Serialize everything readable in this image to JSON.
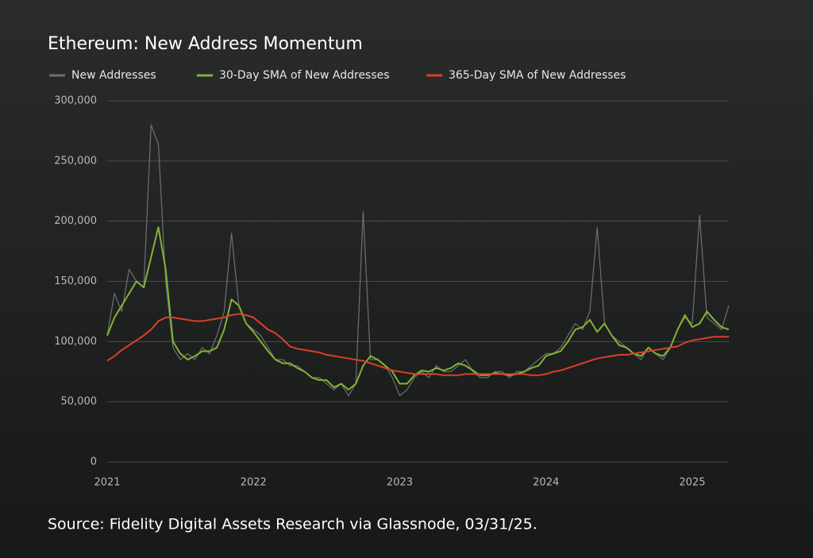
{
  "chart_data": {
    "type": "line",
    "title": "Ethereum: New Address Momentum",
    "source": "Source: Fidelity Digital Assets Research via Glassnode, 03/31/25.",
    "x": [
      2021,
      2021.05,
      2021.1,
      2021.15,
      2021.2,
      2021.25,
      2021.3,
      2021.35,
      2021.4,
      2021.45,
      2021.5,
      2021.55,
      2021.6,
      2021.65,
      2021.7,
      2021.75,
      2021.8,
      2021.85,
      2021.9,
      2021.95,
      2022,
      2022.05,
      2022.1,
      2022.15,
      2022.2,
      2022.25,
      2022.3,
      2022.35,
      2022.4,
      2022.45,
      2022.5,
      2022.55,
      2022.6,
      2022.65,
      2022.7,
      2022.75,
      2022.8,
      2022.85,
      2022.9,
      2022.95,
      2023,
      2023.05,
      2023.1,
      2023.15,
      2023.2,
      2023.25,
      2023.3,
      2023.35,
      2023.4,
      2023.45,
      2023.5,
      2023.55,
      2023.6,
      2023.65,
      2023.7,
      2023.75,
      2023.8,
      2023.85,
      2023.9,
      2023.95,
      2024,
      2024.05,
      2024.1,
      2024.15,
      2024.2,
      2024.25,
      2024.3,
      2024.35,
      2024.4,
      2024.45,
      2024.5,
      2024.55,
      2024.6,
      2024.65,
      2024.7,
      2024.75,
      2024.8,
      2024.85,
      2024.9,
      2024.95,
      2025,
      2025.05,
      2025.1,
      2025.15,
      2025.2,
      2025.25
    ],
    "series": [
      {
        "name": "New Addresses",
        "color": "#6e7073",
        "values": [
          105000,
          140000,
          125000,
          160000,
          150000,
          145000,
          280000,
          264000,
          150000,
          95000,
          85000,
          90000,
          85000,
          95000,
          90000,
          105000,
          125000,
          190000,
          130000,
          115000,
          110000,
          105000,
          95000,
          85000,
          85000,
          80000,
          80000,
          75000,
          70000,
          70000,
          65000,
          60000,
          65000,
          55000,
          65000,
          208000,
          85000,
          85000,
          80000,
          70000,
          55000,
          60000,
          70000,
          75000,
          70000,
          80000,
          75000,
          75000,
          80000,
          85000,
          75000,
          70000,
          70000,
          75000,
          75000,
          70000,
          75000,
          75000,
          80000,
          85000,
          90000,
          90000,
          95000,
          105000,
          115000,
          110000,
          125000,
          195000,
          115000,
          105000,
          100000,
          95000,
          90000,
          85000,
          95000,
          90000,
          85000,
          95000,
          110000,
          120000,
          115000,
          205000,
          120000,
          115000,
          110000,
          130000
        ]
      },
      {
        "name": "30-Day SMA of New Addresses",
        "color": "#7fb432",
        "values": [
          105000,
          120000,
          130000,
          140000,
          150000,
          145000,
          170000,
          195000,
          160000,
          100000,
          90000,
          85000,
          88000,
          92000,
          92000,
          95000,
          110000,
          135000,
          130000,
          115000,
          108000,
          100000,
          92000,
          85000,
          82000,
          82000,
          78000,
          75000,
          70000,
          68000,
          68000,
          62000,
          65000,
          60000,
          65000,
          80000,
          88000,
          85000,
          80000,
          75000,
          65000,
          65000,
          72000,
          76000,
          75000,
          78000,
          76000,
          78000,
          82000,
          80000,
          76000,
          72000,
          72000,
          74000,
          73000,
          72000,
          73000,
          75000,
          78000,
          80000,
          88000,
          90000,
          92000,
          100000,
          110000,
          112000,
          118000,
          108000,
          115000,
          105000,
          97000,
          95000,
          90000,
          88000,
          95000,
          90000,
          88000,
          95000,
          110000,
          122000,
          112000,
          115000,
          125000,
          118000,
          112000,
          110000
        ]
      },
      {
        "name": "365-Day SMA of New Addresses",
        "color": "#d9402a",
        "values": [
          84000,
          88000,
          93000,
          97000,
          101000,
          105000,
          110000,
          117000,
          120000,
          120000,
          119000,
          118000,
          117000,
          117000,
          118000,
          119000,
          120000,
          122000,
          123000,
          122000,
          120000,
          115000,
          110000,
          107000,
          102000,
          96000,
          94000,
          93000,
          92000,
          91000,
          89000,
          88000,
          87000,
          86000,
          85000,
          84000,
          82000,
          80000,
          78000,
          76000,
          75000,
          74000,
          73000,
          73000,
          73000,
          73000,
          72000,
          72000,
          72000,
          73000,
          73000,
          73000,
          73000,
          73000,
          73000,
          73000,
          73000,
          73000,
          72000,
          72000,
          73000,
          75000,
          76000,
          78000,
          80000,
          82000,
          84000,
          86000,
          87000,
          88000,
          89000,
          89000,
          90000,
          91000,
          92000,
          93000,
          94000,
          95000,
          96000,
          99000,
          101000,
          102000,
          103000,
          104000,
          104000,
          104000
        ]
      }
    ],
    "xlim": [
      2021,
      2025.25
    ],
    "xticks": [
      2021,
      2022,
      2023,
      2024,
      2025
    ],
    "ylim": [
      0,
      300000
    ],
    "yticks": [
      0,
      {
        "value": 50000,
        "label": "50,000"
      },
      {
        "value": 100000,
        "label": "100,000"
      },
      {
        "value": 150000,
        "label": "150,000"
      },
      {
        "value": 200000,
        "label": "200,000"
      },
      {
        "value": 250000,
        "label": "250,000"
      },
      {
        "value": 300000,
        "label": "300,000"
      }
    ],
    "grid": true
  }
}
